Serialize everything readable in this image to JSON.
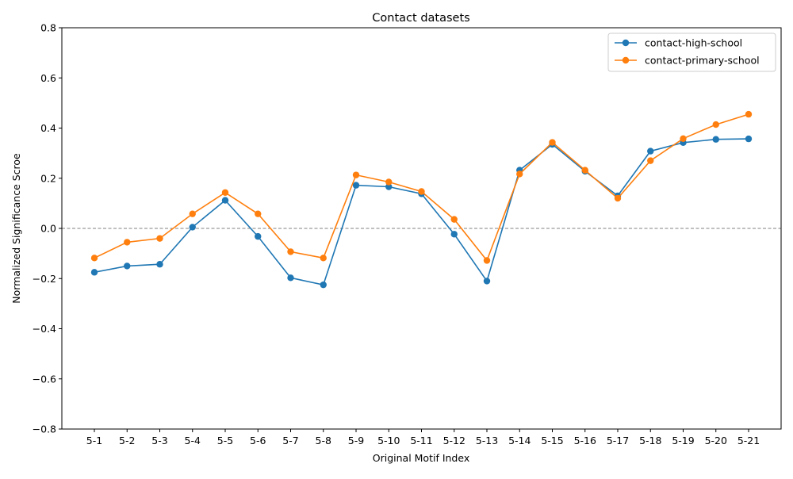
{
  "chart_data": {
    "type": "line",
    "title": "Contact datasets",
    "xlabel": "Original Motif Index",
    "ylabel": "Normalized Significance Scroe",
    "categories": [
      "5-1",
      "5-2",
      "5-3",
      "5-4",
      "5-5",
      "5-6",
      "5-7",
      "5-8",
      "5-9",
      "5-10",
      "5-11",
      "5-12",
      "5-13",
      "5-14",
      "5-15",
      "5-16",
      "5-17",
      "5-18",
      "5-19",
      "5-20",
      "5-21"
    ],
    "ylim": [
      -0.8,
      0.8
    ],
    "yticks": [
      -0.8,
      -0.6,
      -0.4,
      -0.2,
      0.0,
      0.2,
      0.4,
      0.6,
      0.8
    ],
    "ytick_labels": [
      "−0.8",
      "−0.6",
      "−0.4",
      "−0.2",
      "0.0",
      "0.2",
      "0.4",
      "0.6",
      "0.8"
    ],
    "reference_line": 0.0,
    "grid": false,
    "legend_position": "top-right",
    "series": [
      {
        "name": "contact-high-school",
        "color": "#1f77b4",
        "values": [
          -0.175,
          -0.15,
          -0.143,
          0.005,
          0.112,
          -0.032,
          -0.197,
          -0.225,
          0.172,
          0.166,
          0.138,
          -0.023,
          -0.21,
          0.232,
          0.335,
          0.228,
          0.13,
          0.308,
          0.342,
          0.355,
          0.357
        ]
      },
      {
        "name": "contact-primary-school",
        "color": "#ff7f0e",
        "values": [
          -0.118,
          -0.055,
          -0.04,
          0.058,
          0.143,
          0.058,
          -0.093,
          -0.118,
          0.213,
          0.185,
          0.147,
          0.036,
          -0.128,
          0.217,
          0.343,
          0.232,
          0.12,
          0.27,
          0.358,
          0.414,
          0.455
        ]
      }
    ]
  }
}
